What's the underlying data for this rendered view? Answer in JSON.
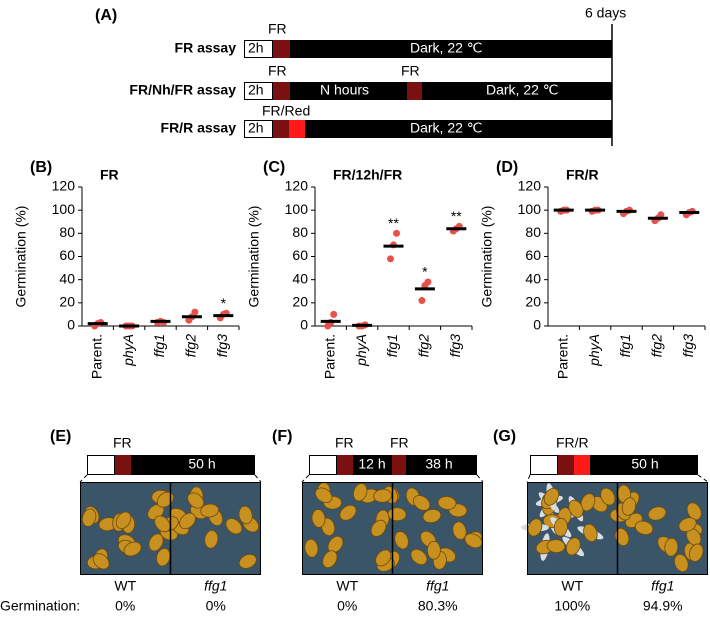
{
  "panel_a": {
    "label": "(A)",
    "end_label": "6 days",
    "rows": [
      {
        "name": "FR assay",
        "pre": "2h",
        "light": "FR",
        "dark": "Dark, 22 ℃"
      },
      {
        "name": "FR/Nh/FR assay",
        "pre": "2h",
        "light": "FR",
        "interval": "N hours",
        "light2": "FR",
        "dark": "Dark, 22 ℃"
      },
      {
        "name": "FR/R assay",
        "pre": "2h",
        "light": "FR/Red",
        "dark": "Dark, 22 ℃"
      }
    ]
  },
  "chart_data": [
    {
      "type": "strip",
      "label": "(B)",
      "title": "FR",
      "y_label": "Germination (%)",
      "categories": [
        "Parent.",
        "phyA",
        "ffg1",
        "ffg2",
        "ffg3"
      ],
      "points": [
        [
          0,
          2,
          3
        ],
        [
          0,
          0,
          0
        ],
        [
          3,
          4,
          3
        ],
        [
          5,
          8,
          12
        ],
        [
          7,
          10,
          11
        ]
      ],
      "means": [
        2,
        0,
        4,
        8,
        9
      ],
      "annotations": [
        null,
        null,
        null,
        null,
        "*"
      ],
      "point_color": "#e8504a",
      "mean_color": "#000000",
      "ylim": [
        0,
        120
      ],
      "yticks": [
        0,
        20,
        40,
        60,
        80,
        100,
        120
      ]
    },
    {
      "type": "strip",
      "label": "(C)",
      "title": "FR/12h/FR",
      "y_label": "Germination (%)",
      "categories": [
        "Parent.",
        "phyA",
        "ffg1",
        "ffg2",
        "ffg3"
      ],
      "points": [
        [
          0,
          3,
          10
        ],
        [
          0,
          0,
          1
        ],
        [
          58,
          70,
          80
        ],
        [
          22,
          35,
          38
        ],
        [
          82,
          84,
          86
        ]
      ],
      "means": [
        4,
        0.5,
        69,
        32,
        84
      ],
      "annotations": [
        null,
        null,
        "**",
        "*",
        "**"
      ],
      "point_color": "#e8504a",
      "mean_color": "#000000",
      "ylim": [
        0,
        120
      ],
      "yticks": [
        0,
        20,
        40,
        60,
        80,
        100,
        120
      ]
    },
    {
      "type": "strip",
      "label": "(D)",
      "title": "FR/R",
      "y_label": "Germination (%)",
      "categories": [
        "Parent.",
        "phyA",
        "ffg1",
        "ffg2",
        "ffg3"
      ],
      "points": [
        [
          99,
          100,
          100
        ],
        [
          99,
          100,
          100
        ],
        [
          97,
          99,
          100
        ],
        [
          91,
          93,
          96
        ],
        [
          96,
          98,
          99
        ]
      ],
      "means": [
        100,
        100,
        99,
        93,
        98
      ],
      "annotations": [
        null,
        null,
        null,
        null,
        null
      ],
      "point_color": "#e8504a",
      "mean_color": "#000000",
      "ylim": [
        0,
        120
      ],
      "yticks": [
        0,
        20,
        40,
        60,
        80,
        100,
        120
      ]
    }
  ],
  "photo_panels": [
    {
      "label": "(E)",
      "light": "FR",
      "segments": [
        "50 h"
      ],
      "samples": [
        {
          "name": "WT",
          "germination": "0%"
        },
        {
          "name": "ffg1",
          "germination": "0%"
        }
      ]
    },
    {
      "label": "(F)",
      "light": "FR",
      "light2": "FR",
      "segments": [
        "12 h",
        "38 h"
      ],
      "samples": [
        {
          "name": "WT",
          "germination": "0%"
        },
        {
          "name": "ffg1",
          "germination": "80.3%"
        }
      ]
    },
    {
      "label": "(G)",
      "light": "FR/R",
      "segments": [
        "50 h"
      ],
      "samples": [
        {
          "name": "WT",
          "germination": "100%"
        },
        {
          "name": "ffg1",
          "germination": "94.9%"
        }
      ]
    }
  ],
  "germination_label": "Germination:"
}
